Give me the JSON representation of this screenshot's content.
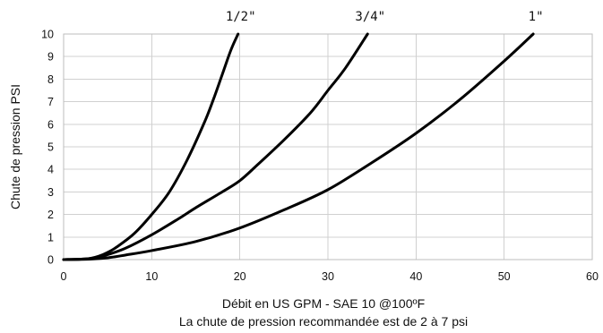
{
  "chart_data": {
    "type": "line",
    "ylabel": "Chute de pression PSI",
    "xlabel": "Débit en US GPM - SAE 10 @100ºF",
    "subtitle": "La chute de pression recommandée est de 2 à 7 psi",
    "xlim": [
      0,
      60
    ],
    "ylim": [
      0,
      10
    ],
    "xticks": [
      0,
      10,
      20,
      30,
      40,
      50,
      60
    ],
    "yticks": [
      0,
      1,
      2,
      3,
      4,
      5,
      6,
      7,
      8,
      9,
      10
    ],
    "grid": true,
    "series_label_placement": "top, above curve ends",
    "series": [
      {
        "name": "1/2\"",
        "x": [
          0,
          2,
          3,
          4,
          5,
          6,
          8,
          10,
          12,
          14,
          16,
          17,
          18,
          19,
          19.8
        ],
        "y": [
          0,
          0.02,
          0.05,
          0.15,
          0.32,
          0.55,
          1.15,
          2.0,
          3.0,
          4.4,
          6.1,
          7.1,
          8.2,
          9.3,
          10
        ]
      },
      {
        "name": "3/4\"",
        "x": [
          0,
          2,
          3,
          4,
          5,
          7,
          10,
          13,
          15,
          18,
          20,
          22,
          25,
          28,
          30,
          32,
          34.5
        ],
        "y": [
          0,
          0.02,
          0.05,
          0.1,
          0.22,
          0.5,
          1.1,
          1.8,
          2.3,
          3.0,
          3.5,
          4.2,
          5.3,
          6.5,
          7.5,
          8.5,
          10
        ]
      },
      {
        "name": "1\"",
        "x": [
          0,
          3,
          5,
          7,
          10,
          15,
          20,
          25,
          30,
          35,
          40,
          45,
          50,
          53.3
        ],
        "y": [
          0,
          0.02,
          0.08,
          0.2,
          0.4,
          0.8,
          1.4,
          2.2,
          3.1,
          4.3,
          5.6,
          7.1,
          8.8,
          10
        ]
      }
    ]
  }
}
